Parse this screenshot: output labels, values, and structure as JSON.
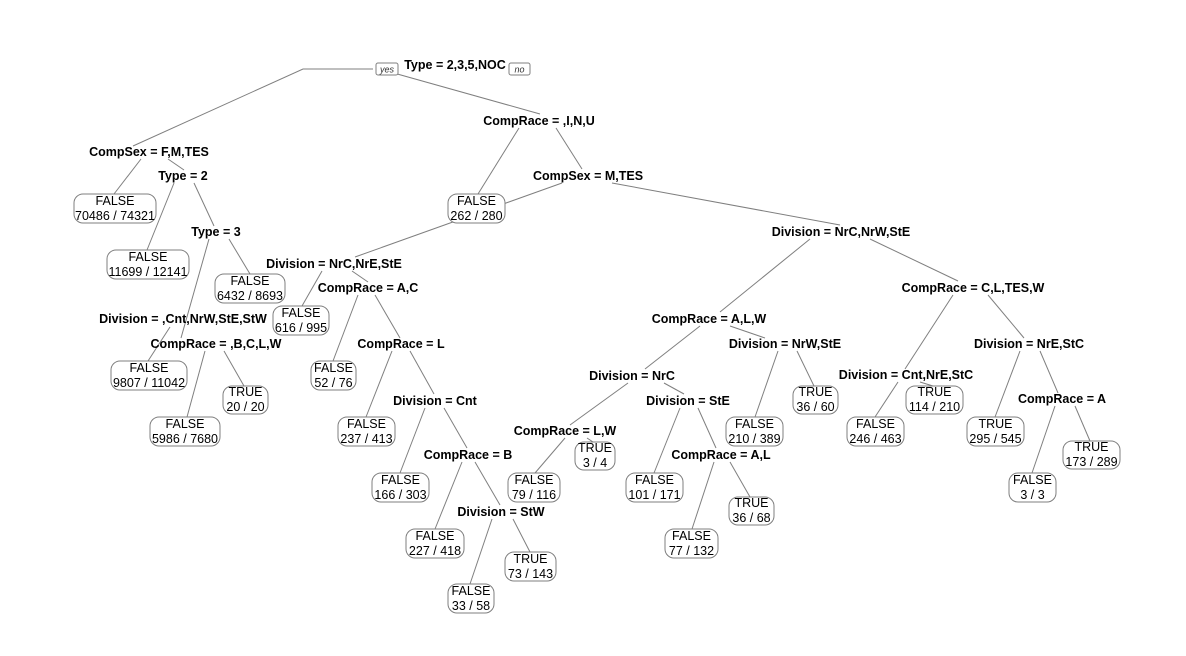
{
  "root_tags": {
    "yes": "yes",
    "no": "no"
  },
  "splits": [
    {
      "id": "s1",
      "label": "Type = 2,3,5,NOC"
    },
    {
      "id": "s2",
      "label": "CompSex = F,M,TES"
    },
    {
      "id": "s3",
      "label": "Type = 2"
    },
    {
      "id": "s4",
      "label": "Type = 3"
    },
    {
      "id": "s5",
      "label": "Division = ,Cnt,NrW,StE,StW"
    },
    {
      "id": "s6",
      "label": "CompRace = ,B,C,L,W"
    },
    {
      "id": "s7",
      "label": "CompRace = ,I,N,U"
    },
    {
      "id": "s8",
      "label": "CompSex = M,TES"
    },
    {
      "id": "s9",
      "label": "Division = NrC,NrE,StE"
    },
    {
      "id": "s10",
      "label": "CompRace = A,C"
    },
    {
      "id": "s11",
      "label": "CompRace = L"
    },
    {
      "id": "s12",
      "label": "Division = Cnt"
    },
    {
      "id": "s13",
      "label": "CompRace = B"
    },
    {
      "id": "s14",
      "label": "Division = StW"
    },
    {
      "id": "s15",
      "label": "Division = NrC,NrW,StE"
    },
    {
      "id": "s16",
      "label": "CompRace = A,L,W"
    },
    {
      "id": "s17",
      "label": "Division = NrC"
    },
    {
      "id": "s18",
      "label": "CompRace = L,W"
    },
    {
      "id": "s19",
      "label": "Division = StE"
    },
    {
      "id": "s20",
      "label": "CompRace = A,L"
    },
    {
      "id": "s21",
      "label": "Division = NrW,StE"
    },
    {
      "id": "s22",
      "label": "CompRace = C,L,TES,W"
    },
    {
      "id": "s23",
      "label": "Division = Cnt,NrE,StC"
    },
    {
      "id": "s24",
      "label": "Division = NrE,StC"
    },
    {
      "id": "s25",
      "label": "CompRace = A"
    }
  ],
  "leaves": [
    {
      "id": "l1",
      "class": "FALSE",
      "counts": "70486 / 74321"
    },
    {
      "id": "l2",
      "class": "FALSE",
      "counts": "11699 / 12141"
    },
    {
      "id": "l3",
      "class": "FALSE",
      "counts": "6432 / 8693"
    },
    {
      "id": "l4",
      "class": "FALSE",
      "counts": "9807 / 11042"
    },
    {
      "id": "l5",
      "class": "TRUE",
      "counts": "20 / 20"
    },
    {
      "id": "l6",
      "class": "FALSE",
      "counts": "5986 / 7680"
    },
    {
      "id": "l7",
      "class": "FALSE",
      "counts": "262 / 280"
    },
    {
      "id": "l8",
      "class": "FALSE",
      "counts": "616 / 995"
    },
    {
      "id": "l9",
      "class": "FALSE",
      "counts": "52 / 76"
    },
    {
      "id": "l10",
      "class": "FALSE",
      "counts": "237 / 413"
    },
    {
      "id": "l11",
      "class": "FALSE",
      "counts": "166 / 303"
    },
    {
      "id": "l12",
      "class": "FALSE",
      "counts": "227 / 418"
    },
    {
      "id": "l13",
      "class": "TRUE",
      "counts": "73 / 143"
    },
    {
      "id": "l14",
      "class": "FALSE",
      "counts": "33 / 58"
    },
    {
      "id": "l15",
      "class": "TRUE",
      "counts": "3 / 4"
    },
    {
      "id": "l16",
      "class": "FALSE",
      "counts": "79 / 116"
    },
    {
      "id": "l17",
      "class": "FALSE",
      "counts": "101 / 171"
    },
    {
      "id": "l18",
      "class": "TRUE",
      "counts": "36 / 68"
    },
    {
      "id": "l19",
      "class": "FALSE",
      "counts": "77 / 132"
    },
    {
      "id": "l20",
      "class": "FALSE",
      "counts": "210 / 389"
    },
    {
      "id": "l21",
      "class": "TRUE",
      "counts": "36 / 60"
    },
    {
      "id": "l22",
      "class": "FALSE",
      "counts": "246 / 463"
    },
    {
      "id": "l23",
      "class": "TRUE",
      "counts": "114 / 210"
    },
    {
      "id": "l24",
      "class": "TRUE",
      "counts": "295 / 545"
    },
    {
      "id": "l25",
      "class": "FALSE",
      "counts": "3 / 3"
    },
    {
      "id": "l26",
      "class": "TRUE",
      "counts": "173 / 289"
    }
  ]
}
